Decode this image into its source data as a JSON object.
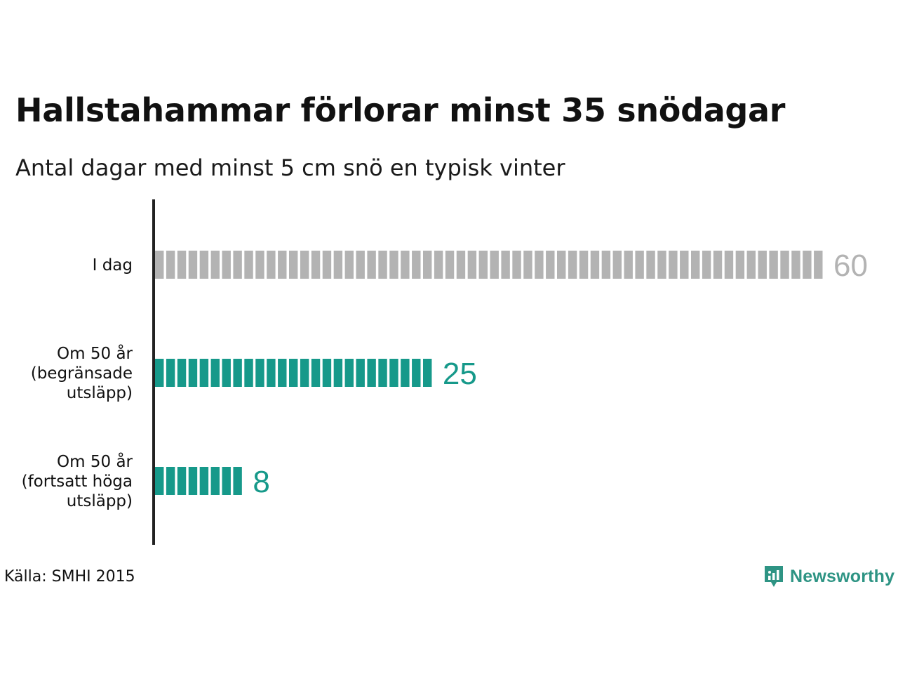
{
  "chart_data": {
    "type": "bar",
    "orientation": "horizontal",
    "title": "Hallstahammar förlorar minst 35 snödagar",
    "subtitle": "Antal dagar med minst 5 cm snö en typisk vinter",
    "categories": [
      [
        "I dag"
      ],
      [
        "Om 50 år",
        "(begränsade",
        "utsläpp)"
      ],
      [
        "Om 50 år",
        "(fortsatt höga",
        "utsläpp)"
      ]
    ],
    "values": [
      60,
      25,
      8
    ],
    "value_labels": [
      "60",
      "25",
      "8"
    ],
    "bar_colors": [
      "#b3b3b3",
      "#16998a",
      "#16998a"
    ],
    "value_label_colors": [
      "#b3b3b3",
      "#16998a",
      "#16998a"
    ],
    "xlim": [
      0,
      60
    ],
    "bar_style": "segmented, one segment per day",
    "grid": false
  },
  "source": "Källa: SMHI 2015",
  "brand": {
    "name": "Newsworthy",
    "icon": "newsworthy-logo-icon",
    "color": "#2e9484"
  }
}
